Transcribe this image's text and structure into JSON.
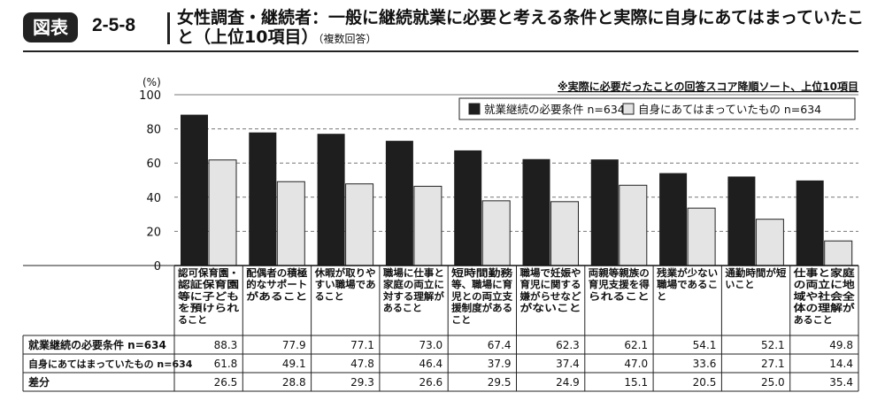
{
  "figure": {
    "badge": "図表",
    "number": "2-5-8",
    "title": "女性調査・継続者：一般に継続就業に必要と考える条件と実際に自身にあてはまっていたこと（上位10項目）",
    "title_note": "（複数回答）"
  },
  "chart_data": {
    "type": "bar",
    "note": "※実際に必要だったことの回答スコア降順ソート、上位10項目",
    "ylabel": "(%)",
    "ylim": [
      0,
      100
    ],
    "yticks": [
      0,
      20,
      40,
      60,
      80,
      100
    ],
    "grid": true,
    "legend_position": "top-right",
    "categories": [
      [
        "認可保育園・",
        "認証保育園",
        "等に子ども",
        "を預けられ",
        "ること"
      ],
      [
        "配偶者の積極",
        "的なサポート",
        "があること"
      ],
      [
        "休暇が取りや",
        "すい職場であ",
        "ること"
      ],
      [
        "職場に仕事と",
        "家庭の両立に",
        "対する理解が",
        "あること"
      ],
      [
        "短時間勤務",
        "等、職場に育",
        "児との両立支",
        "援制度がある",
        "こと"
      ],
      [
        "職場で妊娠や",
        "育児に関する",
        "嫌がらせなど",
        "がないこと"
      ],
      [
        "両親等親族の",
        "育児支援を得",
        "られること"
      ],
      [
        "残業が少ない",
        "職場であるこ",
        "と"
      ],
      [
        "通勤時間が短",
        "いこと"
      ],
      [
        "仕事と家庭",
        "の両立に地",
        "域や社会全",
        "体の理解が",
        "あること"
      ]
    ],
    "series": [
      {
        "name": "就業継続の必要条件 n=634",
        "color": "#1e1e1e",
        "values": [
          88.3,
          77.9,
          77.1,
          73.0,
          67.4,
          62.3,
          62.1,
          54.1,
          52.1,
          49.8
        ]
      },
      {
        "name": "自身にあてはまっていたもの n=634",
        "color": "#e4e4e4",
        "values": [
          61.8,
          49.1,
          47.8,
          46.4,
          37.9,
          37.4,
          47.0,
          33.6,
          27.1,
          14.4
        ]
      }
    ],
    "table": {
      "rows": [
        {
          "label": "就業継続の必要条件 n=634",
          "values": [
            "88.3",
            "77.9",
            "77.1",
            "73.0",
            "67.4",
            "62.3",
            "62.1",
            "54.1",
            "52.1",
            "49.8"
          ]
        },
        {
          "label": "自身にあてはまっていたもの n=634",
          "values": [
            "61.8",
            "49.1",
            "47.8",
            "46.4",
            "37.9",
            "37.4",
            "47.0",
            "33.6",
            "27.1",
            "14.4"
          ]
        },
        {
          "label": "差分",
          "values": [
            "26.5",
            "28.8",
            "29.3",
            "26.6",
            "29.5",
            "24.9",
            "15.1",
            "20.5",
            "25.0",
            "35.4"
          ]
        }
      ]
    }
  }
}
